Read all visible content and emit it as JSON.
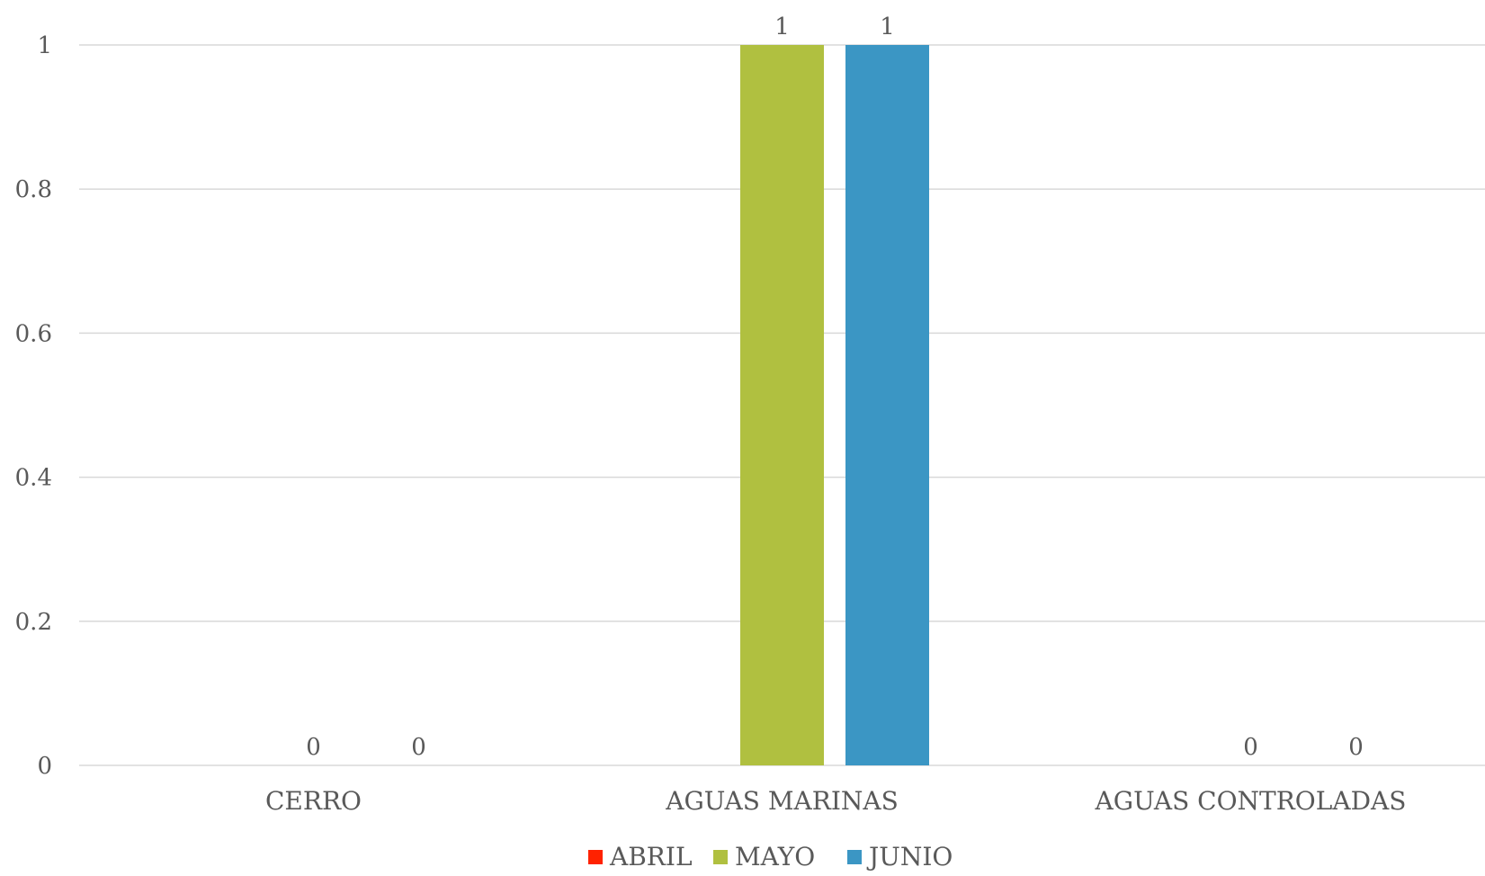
{
  "chart_data": {
    "type": "bar",
    "title": "",
    "xlabel": "",
    "ylabel": "",
    "categories": [
      "CERRO",
      "AGUAS MARINAS",
      "AGUAS CONTROLADAS"
    ],
    "series": [
      {
        "name": "ABRIL",
        "color": "#ff2200",
        "values": [
          null,
          null,
          null
        ],
        "data_labels": [
          "",
          "",
          ""
        ]
      },
      {
        "name": "MAYO",
        "color": "#b0c040",
        "values": [
          0,
          1,
          0
        ],
        "data_labels": [
          "0",
          "1",
          "0"
        ]
      },
      {
        "name": "JUNIO",
        "color": "#3b96c4",
        "values": [
          0,
          1,
          0
        ],
        "data_labels": [
          "0",
          "1",
          "0"
        ]
      }
    ],
    "ylim": [
      0,
      1
    ],
    "yticks": [
      0,
      0.2,
      0.4,
      0.6,
      0.8,
      1
    ],
    "ytick_labels": [
      "0",
      "0.2",
      "0.4",
      "0.6",
      "0.8",
      "1"
    ],
    "grid": true,
    "legend_position": "bottom",
    "gridline_color": "#d9d9d9",
    "text_color": "#595959"
  }
}
